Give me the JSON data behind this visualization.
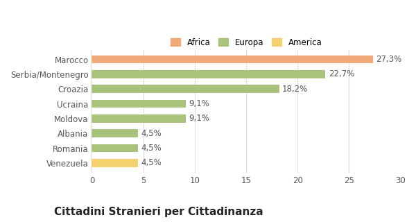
{
  "categories": [
    "Venezuela",
    "Romania",
    "Albania",
    "Moldova",
    "Ucraina",
    "Croazia",
    "Serbia/Montenegro",
    "Marocco"
  ],
  "values": [
    4.5,
    4.5,
    4.5,
    9.1,
    9.1,
    18.2,
    22.7,
    27.3
  ],
  "labels": [
    "4,5%",
    "4,5%",
    "4,5%",
    "9,1%",
    "9,1%",
    "18,2%",
    "22,7%",
    "27,3%"
  ],
  "colors": [
    "#f5d06e",
    "#a8c47a",
    "#a8c47a",
    "#a8c47a",
    "#a8c47a",
    "#a8c47a",
    "#a8c47a",
    "#f0aa7a"
  ],
  "legend": [
    {
      "label": "Africa",
      "color": "#f0aa7a"
    },
    {
      "label": "Europa",
      "color": "#a8c47a"
    },
    {
      "label": "America",
      "color": "#f5d06e"
    }
  ],
  "xlim": [
    0,
    30
  ],
  "xticks": [
    0,
    5,
    10,
    15,
    20,
    25,
    30
  ],
  "title": "Cittadini Stranieri per Cittadinanza",
  "background_color": "#ffffff",
  "grid_color": "#dddddd",
  "bar_height": 0.55,
  "label_fontsize": 8.5,
  "tick_fontsize": 8.5,
  "title_fontsize": 11,
  "subtitle_fontsize": 7.5
}
